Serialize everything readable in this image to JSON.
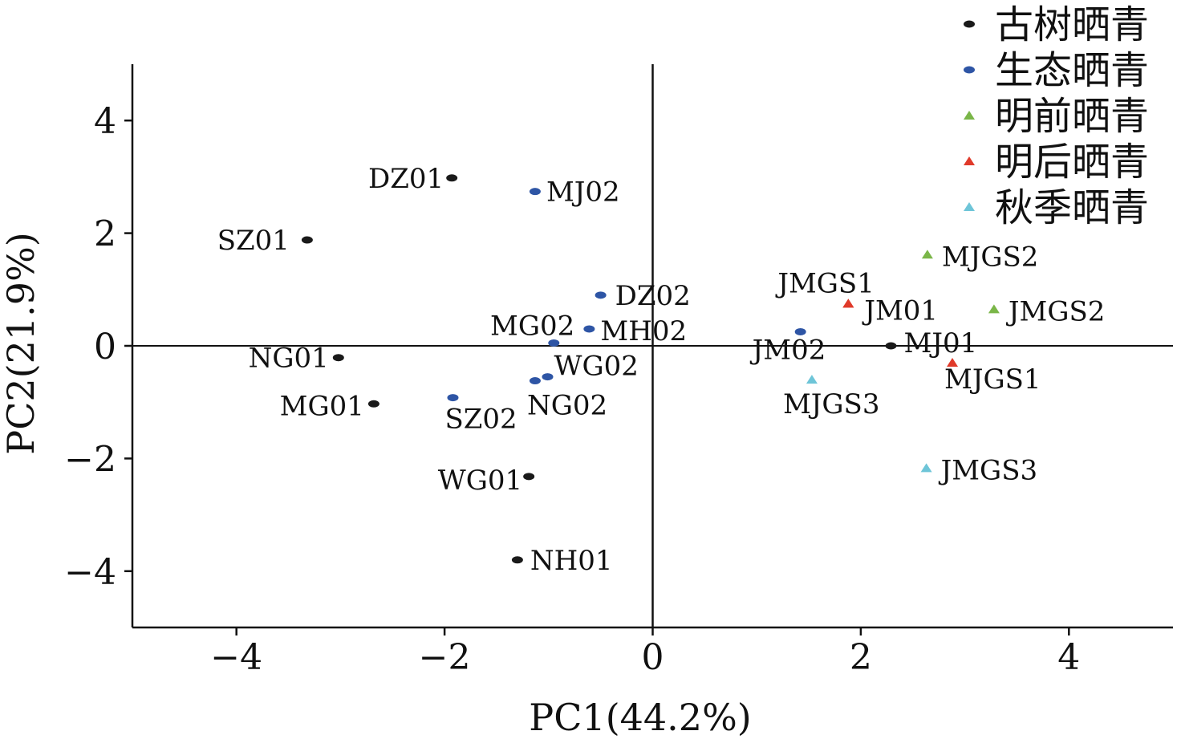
{
  "chart_data": {
    "type": "scatter",
    "xlabel": "PC1(44.2%)",
    "ylabel": "PC2(21.9%)",
    "xlim": [
      -5,
      5
    ],
    "ylim": [
      -5,
      5
    ],
    "xticks": [
      -4,
      -2,
      0,
      2,
      4
    ],
    "yticks": [
      -4,
      -2,
      0,
      2,
      4
    ],
    "tick_labels_x": [
      "−4",
      "−2",
      "0",
      "2",
      "4"
    ],
    "tick_labels_y": [
      "−4",
      "−2",
      "0",
      "2",
      "4"
    ],
    "grid": false,
    "reference_lines": [
      "x=0",
      "y=0"
    ],
    "legend_position": "top-right",
    "series": [
      {
        "name": "古树晒青",
        "color": "#1a1a1a",
        "marker": "circle",
        "points": [
          {
            "label": "DZ01",
            "x": -1.93,
            "y": 2.98
          },
          {
            "label": "SZ01",
            "x": -3.32,
            "y": 1.88
          },
          {
            "label": "NG01",
            "x": -3.02,
            "y": -0.21
          },
          {
            "label": "MG01",
            "x": -2.68,
            "y": -1.03
          },
          {
            "label": "WG01",
            "x": -1.19,
            "y": -2.32
          },
          {
            "label": "NH01",
            "x": -1.3,
            "y": -3.8
          },
          {
            "label": "MJ01",
            "x": 2.29,
            "y": 0.0
          }
        ]
      },
      {
        "name": "生态晒青",
        "color": "#2e55a5",
        "marker": "circle",
        "points": [
          {
            "label": "MJ02",
            "x": -1.13,
            "y": 2.74
          },
          {
            "label": "DZ02",
            "x": -0.5,
            "y": 0.9
          },
          {
            "label": "MH02",
            "x": -0.61,
            "y": 0.3
          },
          {
            "label": "MG02",
            "x": -0.95,
            "y": 0.05
          },
          {
            "label": "WG02",
            "x": -1.01,
            "y": -0.55
          },
          {
            "label": "NG02",
            "x": -1.13,
            "y": -0.62
          },
          {
            "label": "SZ02",
            "x": -1.92,
            "y": -0.92
          },
          {
            "label": "JM02",
            "x": 1.42,
            "y": 0.25
          }
        ]
      },
      {
        "name": "明前晒青",
        "color": "#7ab648",
        "marker": "triangle",
        "points": [
          {
            "label": "MJGS2",
            "x": 2.64,
            "y": 1.62
          },
          {
            "label": "JMGS2",
            "x": 3.28,
            "y": 0.65
          }
        ]
      },
      {
        "name": "明后晒青",
        "color": "#e03a2a",
        "marker": "triangle",
        "points": [
          {
            "label": "JMGS1",
            "x": 1.88,
            "y": 0.75
          },
          {
            "label": "JM01",
            "x": 1.88,
            "y": 0.75
          },
          {
            "label": "MJGS1",
            "x": 2.88,
            "y": -0.3
          }
        ]
      },
      {
        "name": "秋季晒青",
        "color": "#6ec5d8",
        "marker": "triangle",
        "points": [
          {
            "label": "MJGS3",
            "x": 1.53,
            "y": -0.6
          },
          {
            "label": "JMGS3",
            "x": 2.63,
            "y": -2.17
          }
        ]
      }
    ]
  }
}
